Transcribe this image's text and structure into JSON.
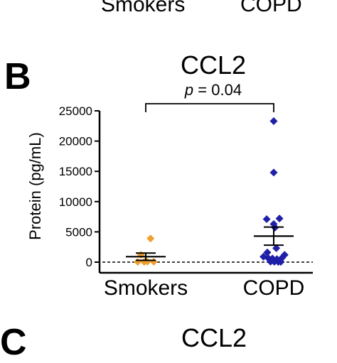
{
  "top_fragment": {
    "labels": [
      "Smokers",
      "COPD"
    ]
  },
  "panel_label": "B",
  "next_panel_label": "C",
  "next_panel_title": "CCL2",
  "significance": {
    "p_label": "p",
    "p_value": "= 0.04"
  },
  "colors": {
    "smokers": "#F0A030",
    "copd": "#1F1FA8",
    "axis": "#000000"
  },
  "chart_data": {
    "type": "scatter",
    "title": "CCL2",
    "xlabel": "",
    "ylabel": "Protein (pg/mL)",
    "categories": [
      "Smokers",
      "COPD"
    ],
    "ylim": [
      0,
      25000
    ],
    "yticks": [
      0,
      5000,
      10000,
      15000,
      20000,
      25000
    ],
    "ytick_labels": [
      "0",
      "5000",
      "10000",
      "15000",
      "20000",
      "25000"
    ],
    "reference_line": {
      "y": 0,
      "style": "dashed"
    },
    "marker": "diamond",
    "series": [
      {
        "category": "Smokers",
        "points": [
          {
            "j": -0.3,
            "y": 1200
          },
          {
            "j": 0.3,
            "y": 3900
          },
          {
            "j": -0.5,
            "y": 50
          },
          {
            "j": -0.1,
            "y": 50
          },
          {
            "j": 0.1,
            "y": 80
          },
          {
            "j": 0.5,
            "y": 60
          }
        ],
        "mean": 900,
        "sem": 600
      },
      {
        "category": "COPD",
        "points": [
          {
            "j": 0.0,
            "y": 23300
          },
          {
            "j": 0.0,
            "y": 14800
          },
          {
            "j": -0.55,
            "y": 7100
          },
          {
            "j": 0.45,
            "y": 7200
          },
          {
            "j": 0.0,
            "y": 6300
          },
          {
            "j": 0.1,
            "y": 5700
          },
          {
            "j": 0.2,
            "y": 2300
          },
          {
            "j": -0.5,
            "y": 1600
          },
          {
            "j": -0.8,
            "y": 900
          },
          {
            "j": -0.45,
            "y": 700
          },
          {
            "j": -0.1,
            "y": 600
          },
          {
            "j": 0.25,
            "y": 500
          },
          {
            "j": 0.85,
            "y": 1200
          },
          {
            "j": 0.65,
            "y": 700
          },
          {
            "j": -0.25,
            "y": 80
          },
          {
            "j": 0.05,
            "y": 60
          },
          {
            "j": 0.35,
            "y": 50
          },
          {
            "j": 0.55,
            "y": 40
          }
        ],
        "mean": 4300,
        "sem": 1500
      }
    ]
  }
}
